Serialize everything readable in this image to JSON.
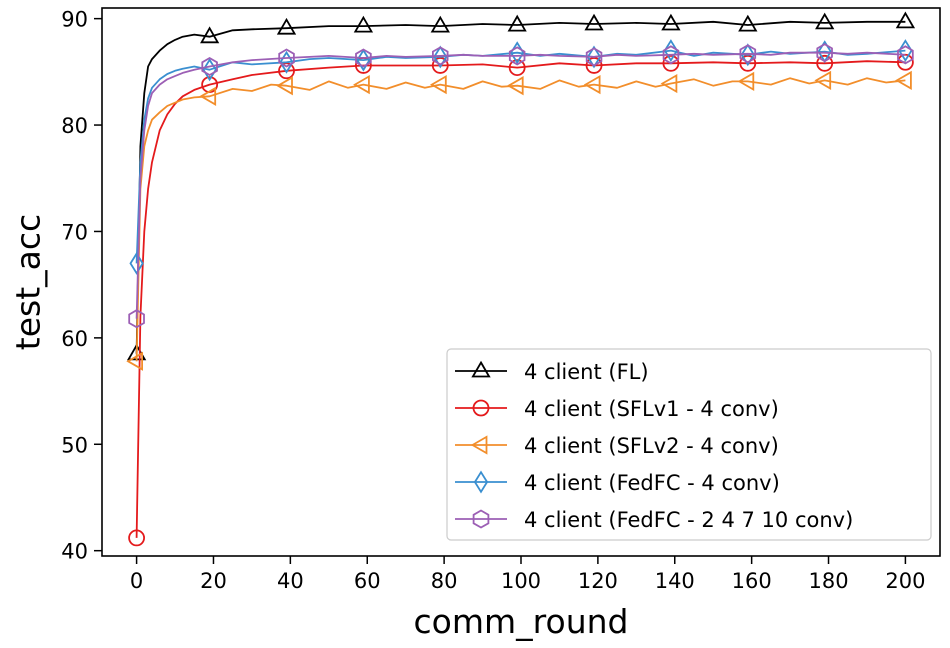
{
  "chart_data": {
    "type": "line",
    "title": "",
    "xlabel": "comm_round",
    "ylabel": "test_acc",
    "xlim": [
      -9,
      209
    ],
    "ylim": [
      39.5,
      91
    ],
    "xticks": [
      0,
      20,
      40,
      60,
      80,
      100,
      120,
      140,
      160,
      180,
      200
    ],
    "yticks": [
      40,
      50,
      60,
      70,
      80,
      90
    ],
    "legend_position": "lower-right",
    "series": [
      {
        "name": "4 client (FL)",
        "color": "#000000",
        "marker": "triangle-up",
        "x": [
          0,
          1,
          2,
          3,
          4,
          6,
          8,
          10,
          12,
          15,
          19,
          25,
          30,
          39,
          50,
          59,
          70,
          79,
          90,
          99,
          110,
          119,
          130,
          139,
          150,
          159,
          170,
          179,
          190,
          200
        ],
        "y": [
          58.5,
          78,
          83,
          85.5,
          86.2,
          87,
          87.6,
          88,
          88.3,
          88.5,
          88.3,
          88.9,
          89,
          89.1,
          89.3,
          89.3,
          89.4,
          89.3,
          89.5,
          89.4,
          89.6,
          89.5,
          89.6,
          89.5,
          89.7,
          89.4,
          89.7,
          89.6,
          89.7,
          89.7
        ],
        "marker_x": [
          0,
          19,
          39,
          59,
          79,
          99,
          119,
          139,
          159,
          179,
          200
        ],
        "marker_y": [
          58.5,
          88.3,
          89.1,
          89.3,
          89.3,
          89.4,
          89.5,
          89.5,
          89.4,
          89.6,
          89.7
        ]
      },
      {
        "name": "4 client (SFLv1 - 4 conv)",
        "color": "#e41a1c",
        "marker": "circle",
        "x": [
          0,
          1,
          2,
          3,
          4,
          6,
          8,
          10,
          12,
          15,
          19,
          25,
          30,
          39,
          50,
          59,
          70,
          79,
          90,
          99,
          110,
          119,
          130,
          139,
          150,
          159,
          170,
          179,
          190,
          200
        ],
        "y": [
          41.2,
          62,
          70,
          74,
          76.5,
          79.5,
          81,
          82,
          82.7,
          83.3,
          83.8,
          84.3,
          84.7,
          85.1,
          85.4,
          85.6,
          85.6,
          85.6,
          85.7,
          85.4,
          85.8,
          85.6,
          85.8,
          85.8,
          85.9,
          85.8,
          85.9,
          85.8,
          86,
          85.9
        ],
        "marker_x": [
          0,
          19,
          39,
          59,
          79,
          99,
          119,
          139,
          159,
          179,
          200
        ],
        "marker_y": [
          41.2,
          83.8,
          85.1,
          85.6,
          85.6,
          85.4,
          85.6,
          85.8,
          85.8,
          85.8,
          85.9
        ]
      },
      {
        "name": "4 client (SFLv2 - 4 conv)",
        "color": "#f28e2b",
        "marker": "triangle-left",
        "x": [
          0,
          1,
          2,
          3,
          4,
          6,
          8,
          10,
          12,
          15,
          19,
          25,
          30,
          35,
          39,
          45,
          50,
          55,
          59,
          65,
          70,
          75,
          79,
          85,
          90,
          95,
          99,
          105,
          110,
          115,
          119,
          125,
          130,
          135,
          139,
          145,
          150,
          155,
          159,
          165,
          170,
          175,
          179,
          185,
          190,
          195,
          200
        ],
        "y": [
          57.8,
          74,
          78,
          79.5,
          80.5,
          81.2,
          81.8,
          82.1,
          82.4,
          82.6,
          82.7,
          83.4,
          83.2,
          83.8,
          83.7,
          83.3,
          84.1,
          83.5,
          83.8,
          83.4,
          84.0,
          83.5,
          83.8,
          83.4,
          84.1,
          83.6,
          83.7,
          83.4,
          84.2,
          83.6,
          83.8,
          83.5,
          84.1,
          83.6,
          83.9,
          84.3,
          83.7,
          84.1,
          84.1,
          83.8,
          84.4,
          83.9,
          84.2,
          83.8,
          84.4,
          84.0,
          84.2
        ],
        "marker_x": [
          0,
          19,
          39,
          59,
          79,
          99,
          119,
          139,
          159,
          179,
          200
        ],
        "marker_y": [
          57.8,
          82.7,
          83.7,
          83.8,
          83.8,
          83.7,
          83.8,
          83.9,
          84.1,
          84.2,
          84.2
        ]
      },
      {
        "name": "4 client (FedFC - 4 conv)",
        "color": "#3a8fd0",
        "marker": "diamond",
        "x": [
          0,
          1,
          2,
          3,
          4,
          6,
          8,
          10,
          12,
          15,
          19,
          25,
          30,
          39,
          45,
          50,
          59,
          65,
          70,
          79,
          85,
          90,
          99,
          105,
          110,
          119,
          125,
          130,
          139,
          145,
          150,
          159,
          165,
          170,
          179,
          185,
          190,
          200
        ],
        "y": [
          67,
          76.5,
          80.5,
          82.5,
          83.5,
          84.3,
          84.8,
          85.1,
          85.3,
          85.5,
          85.2,
          85.9,
          85.7,
          85.9,
          86.2,
          86.3,
          86.1,
          86.4,
          86.3,
          86.4,
          86.6,
          86.5,
          86.8,
          86.5,
          86.7,
          86.4,
          86.7,
          86.6,
          87.0,
          86.5,
          86.8,
          86.6,
          86.9,
          86.7,
          86.9,
          86.6,
          86.7,
          87.0
        ],
        "marker_x": [
          0,
          19,
          39,
          59,
          79,
          99,
          119,
          139,
          159,
          179,
          200
        ],
        "marker_y": [
          67,
          85.2,
          85.9,
          86.1,
          86.4,
          86.8,
          86.4,
          87.0,
          86.6,
          86.9,
          87.0
        ]
      },
      {
        "name": "4 client (FedFC - 2 4 7 10 conv)",
        "color": "#9c5fb5",
        "marker": "hexagon",
        "x": [
          0,
          1,
          2,
          3,
          4,
          6,
          8,
          10,
          12,
          15,
          19,
          25,
          30,
          39,
          45,
          50,
          59,
          65,
          70,
          79,
          85,
          90,
          99,
          105,
          110,
          119,
          125,
          130,
          139,
          145,
          150,
          159,
          165,
          170,
          179,
          185,
          190,
          200
        ],
        "y": [
          61.8,
          75,
          79.5,
          81.8,
          83,
          83.8,
          84.3,
          84.6,
          84.9,
          85.2,
          85.5,
          85.9,
          86.1,
          86.3,
          86.4,
          86.5,
          86.3,
          86.5,
          86.4,
          86.5,
          86.6,
          86.5,
          86.5,
          86.6,
          86.5,
          86.4,
          86.6,
          86.5,
          86.6,
          86.7,
          86.6,
          86.7,
          86.6,
          86.8,
          86.8,
          86.7,
          86.8,
          86.6
        ],
        "marker_x": [
          0,
          19,
          39,
          59,
          79,
          99,
          119,
          139,
          159,
          179,
          200
        ],
        "marker_y": [
          61.8,
          85.5,
          86.3,
          86.3,
          86.5,
          86.5,
          86.4,
          86.6,
          86.7,
          86.8,
          86.6
        ]
      }
    ]
  }
}
